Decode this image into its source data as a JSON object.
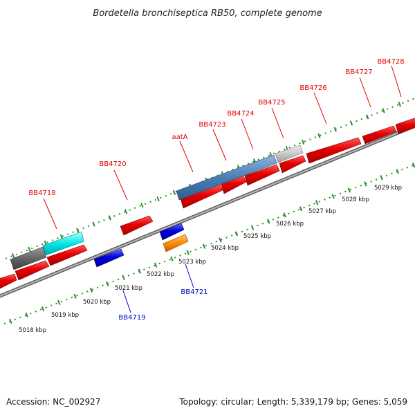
{
  "title": "Bordetella bronchiseptica RB50, complete genome",
  "footer": {
    "accession": "Accession: NC_002927",
    "topology": "Topology: circular; Length: 5,339,179 bp; Genes: 5,059"
  },
  "colors": {
    "forward_label": "#e00000",
    "reverse_label": "#0000cc",
    "backbone": "#888888",
    "tick": "#2e8b2e"
  },
  "scale": {
    "unit": "kbp",
    "labels": [
      "5018 kbp",
      "5019 kbp",
      "5020 kbp",
      "5021 kbp",
      "5022 kbp",
      "5023 kbp",
      "5024 kbp",
      "5025 kbp",
      "5026 kbp",
      "5027 kbp",
      "5028 kbp",
      "5029 kbp"
    ]
  },
  "gene_labels": {
    "forward": [
      "BB4718",
      "BB4720",
      "aatA",
      "BB4723",
      "BB4724",
      "BB4725",
      "BB4726",
      "BB4727",
      "BB4728"
    ],
    "reverse": [
      "BB4719",
      "BB4721"
    ]
  }
}
